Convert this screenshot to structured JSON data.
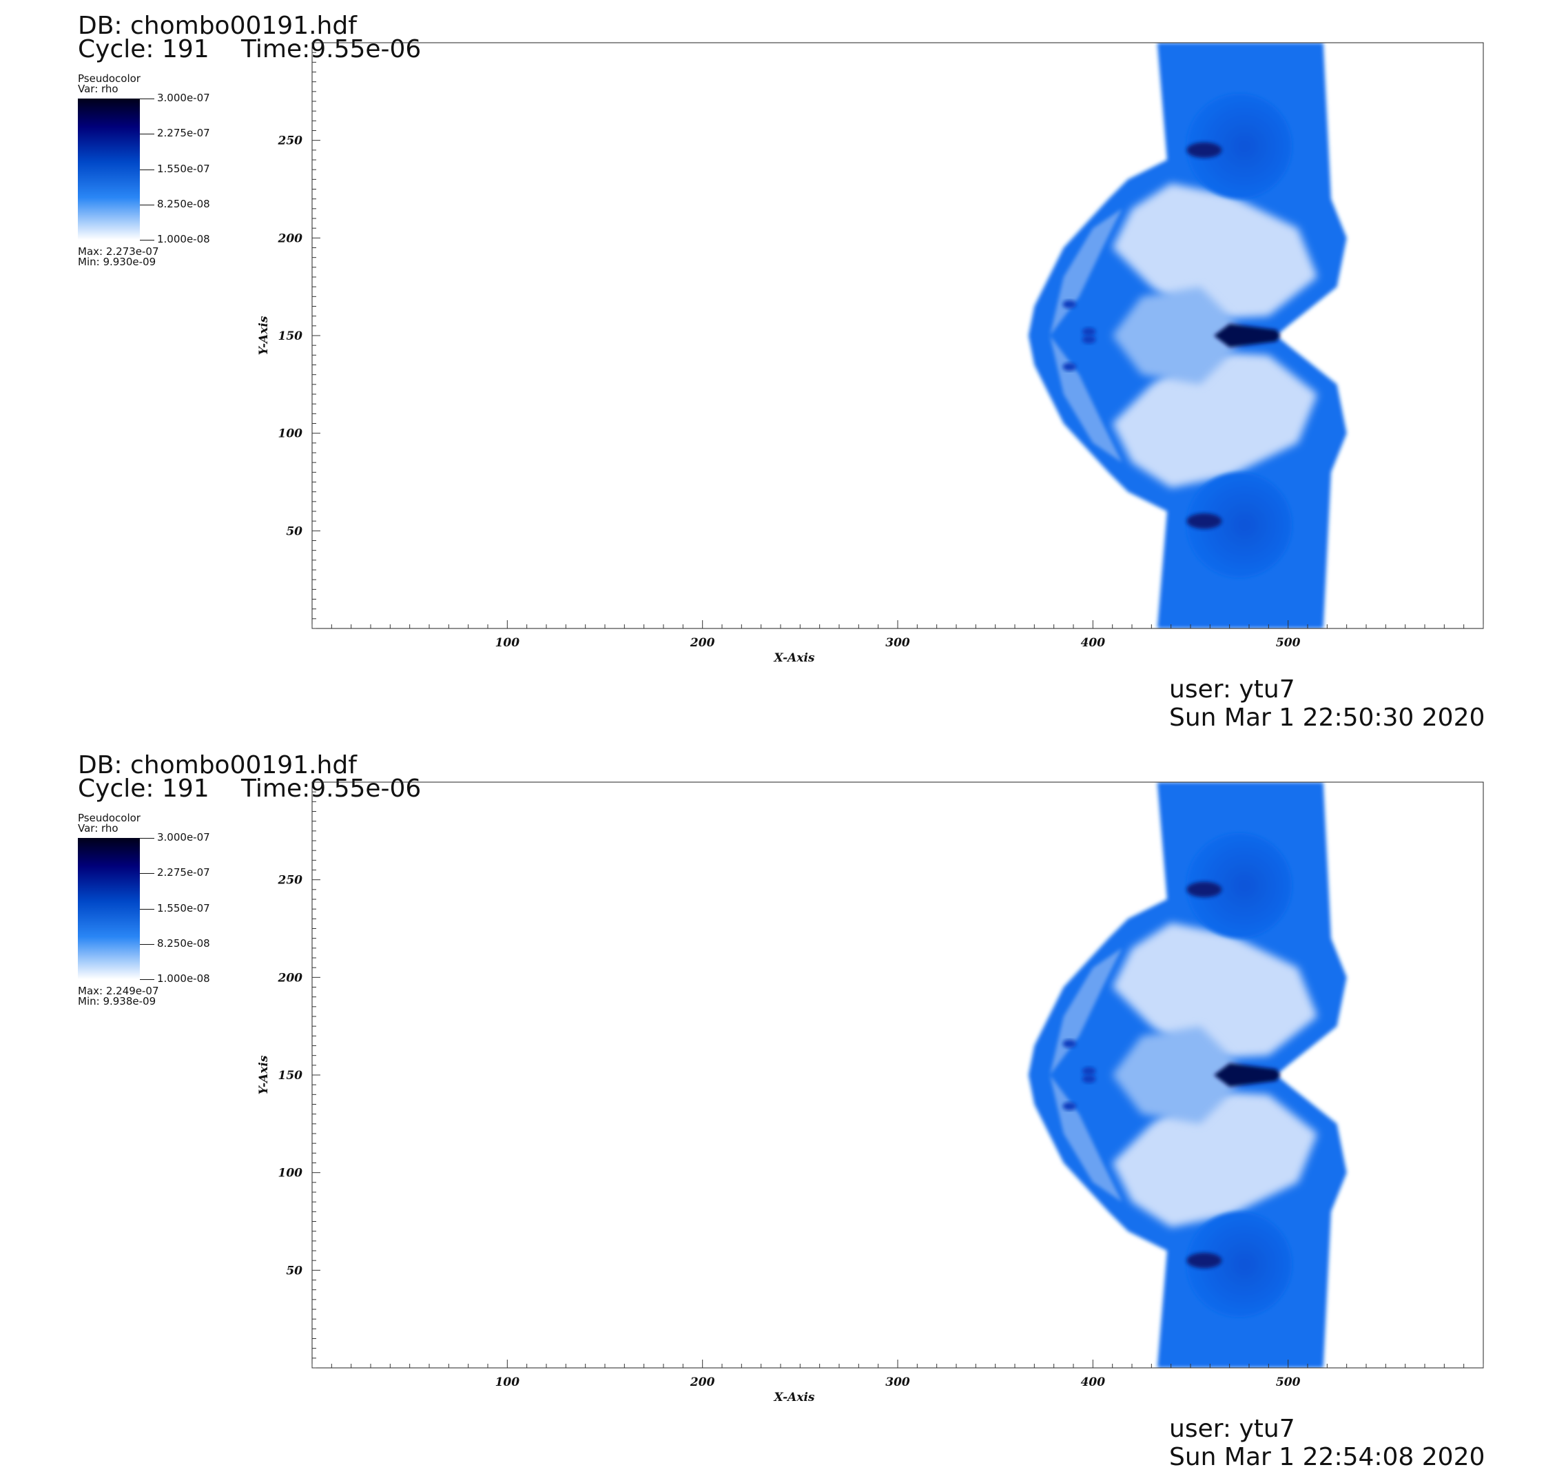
{
  "panels": [
    {
      "db_label": "DB: chombo00191.hdf",
      "cycle_label": "Cycle: 191",
      "time_label": "Time:9.55e-06",
      "legend": {
        "plot_type": "Pseudocolor",
        "var_label": "Var: rho",
        "ticks": [
          "3.000e-07",
          "2.275e-07",
          "1.550e-07",
          "8.250e-08",
          "1.000e-08"
        ],
        "max_label": "Max:  2.273e-07",
        "min_label": "Min:  9.930e-09"
      },
      "user_label": "user: ytu7",
      "date_label": "Sun Mar  1 22:50:30 2020"
    },
    {
      "db_label": "DB: chombo00191.hdf",
      "cycle_label": "Cycle: 191",
      "time_label": "Time:9.55e-06",
      "legend": {
        "plot_type": "Pseudocolor",
        "var_label": "Var: rho",
        "ticks": [
          "3.000e-07",
          "2.275e-07",
          "1.550e-07",
          "8.250e-08",
          "1.000e-08"
        ],
        "max_label": "Max:  2.249e-07",
        "min_label": "Min:  9.938e-09"
      },
      "user_label": "user: ytu7",
      "date_label": "Sun Mar  1 22:54:08 2020"
    }
  ],
  "chart_data": [
    {
      "type": "heatmap",
      "variable": "rho",
      "xlabel": "X-Axis",
      "ylabel": "Y-Axis",
      "xlim": [
        0,
        600
      ],
      "ylim": [
        0,
        300
      ],
      "xticks": [
        100,
        200,
        300,
        400,
        500
      ],
      "yticks": [
        50,
        100,
        150,
        200,
        250
      ],
      "color_range": [
        1e-08,
        3e-07
      ],
      "colormap": [
        "#ffffff",
        "#0a6ef0",
        "#00008b",
        "#000020"
      ],
      "data_max": 2.273e-07,
      "data_min": 9.93e-09,
      "mirror_axis_y": 150,
      "features": {
        "slab_x_range_at_edges": [
          433,
          518
        ],
        "bow_shock_leading_edge_x": 367,
        "dense_jet_x_range_at_y150": [
          470,
          494
        ],
        "vortex_centers": [
          [
            475,
            247
          ],
          [
            475,
            53
          ]
        ]
      }
    },
    {
      "type": "heatmap",
      "variable": "rho",
      "xlabel": "X-Axis",
      "ylabel": "Y-Axis",
      "xlim": [
        0,
        600
      ],
      "ylim": [
        0,
        300
      ],
      "xticks": [
        100,
        200,
        300,
        400,
        500
      ],
      "yticks": [
        50,
        100,
        150,
        200,
        250
      ],
      "color_range": [
        1e-08,
        3e-07
      ],
      "colormap": [
        "#ffffff",
        "#0a6ef0",
        "#00008b",
        "#000020"
      ],
      "data_max": 2.249e-07,
      "data_min": 9.938e-09,
      "mirror_axis_y": 150,
      "features": {
        "slab_x_range_at_edges": [
          433,
          518
        ],
        "bow_shock_leading_edge_x": 367,
        "dense_jet_x_range_at_y150": [
          470,
          494
        ],
        "vortex_centers": [
          [
            475,
            247
          ],
          [
            475,
            53
          ]
        ]
      }
    }
  ]
}
